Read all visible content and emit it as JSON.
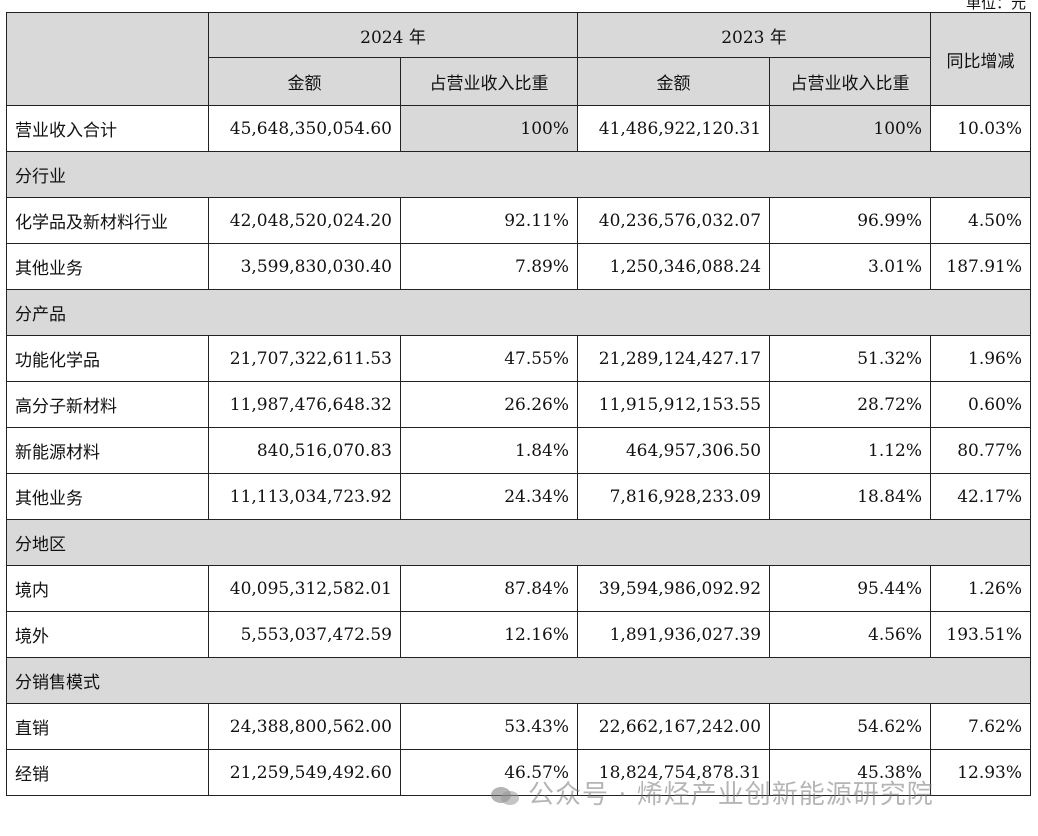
{
  "unit_label": "单位：元",
  "header": {
    "year_2024": "2024 年",
    "year_2023": "2023 年",
    "yoy": "同比增减",
    "amount": "金额",
    "ratio": "占营业收入比重"
  },
  "rows": [
    {
      "label": "营业收入合计",
      "a2024": "45,648,350,054.60",
      "r2024": "100%",
      "a2023": "41,486,922,120.31",
      "r2023": "100%",
      "yoy": "10.03%"
    },
    {
      "section": "分行业"
    },
    {
      "label": "化学品及新材料行业",
      "a2024": "42,048,520,024.20",
      "r2024": "92.11%",
      "a2023": "40,236,576,032.07",
      "r2023": "96.99%",
      "yoy": "4.50%"
    },
    {
      "label": "其他业务",
      "a2024": "3,599,830,030.40",
      "r2024": "7.89%",
      "a2023": "1,250,346,088.24",
      "r2023": "3.01%",
      "yoy": "187.91%"
    },
    {
      "section": "分产品"
    },
    {
      "label": "功能化学品",
      "a2024": "21,707,322,611.53",
      "r2024": "47.55%",
      "a2023": "21,289,124,427.17",
      "r2023": "51.32%",
      "yoy": "1.96%"
    },
    {
      "label": "高分子新材料",
      "a2024": "11,987,476,648.32",
      "r2024": "26.26%",
      "a2023": "11,915,912,153.55",
      "r2023": "28.72%",
      "yoy": "0.60%"
    },
    {
      "label": "新能源材料",
      "a2024": "840,516,070.83",
      "r2024": "1.84%",
      "a2023": "464,957,306.50",
      "r2023": "1.12%",
      "yoy": "80.77%"
    },
    {
      "label": "其他业务",
      "a2024": "11,113,034,723.92",
      "r2024": "24.34%",
      "a2023": "7,816,928,233.09",
      "r2023": "18.84%",
      "yoy": "42.17%"
    },
    {
      "section": "分地区"
    },
    {
      "label": "境内",
      "a2024": "40,095,312,582.01",
      "r2024": "87.84%",
      "a2023": "39,594,986,092.92",
      "r2023": "95.44%",
      "yoy": "1.26%"
    },
    {
      "label": "境外",
      "a2024": "5,553,037,472.59",
      "r2024": "12.16%",
      "a2023": "1,891,936,027.39",
      "r2023": "4.56%",
      "yoy": "193.51%"
    },
    {
      "section": "分销售模式"
    },
    {
      "label": "直销",
      "a2024": "24,388,800,562.00",
      "r2024": "53.43%",
      "a2023": "22,662,167,242.00",
      "r2023": "54.62%",
      "yoy": "7.62%"
    },
    {
      "label": "经销",
      "a2024": "21,259,549,492.60",
      "r2024": "46.57%",
      "a2023": "18,824,754,878.31",
      "r2023": "45.38%",
      "yoy": "12.93%"
    }
  ],
  "watermark": "公众号 · 烯烃产业创新能源研究院"
}
